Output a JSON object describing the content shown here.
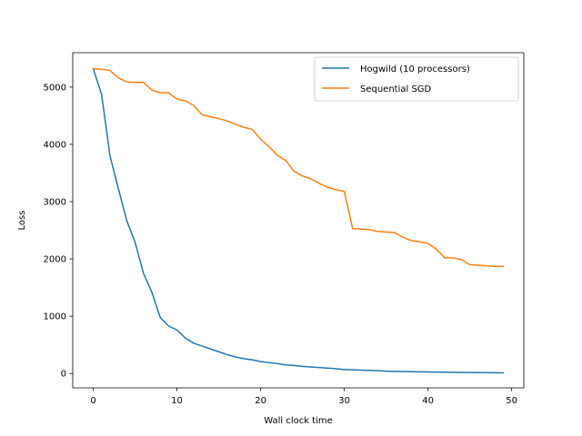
{
  "chart_data": {
    "type": "line",
    "title": "",
    "xlabel": "Wall clock time",
    "ylabel": "Loss",
    "xlim": [
      -2.45,
      51.45
    ],
    "ylim": [
      -250,
      5600
    ],
    "xticks": [
      0,
      10,
      20,
      30,
      40,
      50
    ],
    "yticks": [
      0,
      1000,
      2000,
      3000,
      4000,
      5000
    ],
    "grid": false,
    "legend_position": "top-right",
    "x": [
      0,
      1,
      2,
      3,
      4,
      5,
      6,
      7,
      8,
      9,
      10,
      11,
      12,
      13,
      14,
      15,
      16,
      17,
      18,
      19,
      20,
      21,
      22,
      23,
      24,
      25,
      26,
      27,
      28,
      29,
      30,
      31,
      32,
      33,
      34,
      35,
      36,
      37,
      38,
      39,
      40,
      41,
      42,
      43,
      44,
      45,
      46,
      47,
      48,
      49
    ],
    "series": [
      {
        "name": "Hogwild (10 processors)",
        "color": "#1f77b4",
        "values": [
          5320,
          4870,
          3800,
          3230,
          2670,
          2290,
          1750,
          1420,
          980,
          830,
          760,
          620,
          530,
          480,
          430,
          380,
          330,
          290,
          260,
          240,
          210,
          190,
          175,
          150,
          140,
          125,
          115,
          105,
          95,
          85,
          70,
          65,
          60,
          55,
          50,
          42,
          38,
          35,
          33,
          30,
          28,
          26,
          24,
          22,
          20,
          18,
          16,
          15,
          14,
          12
        ]
      },
      {
        "name": "Sequential SGD",
        "color": "#ff7f0e",
        "values": [
          5320,
          5310,
          5290,
          5160,
          5090,
          5080,
          5080,
          4950,
          4900,
          4900,
          4790,
          4760,
          4680,
          4520,
          4480,
          4450,
          4410,
          4350,
          4300,
          4260,
          4090,
          3960,
          3810,
          3720,
          3530,
          3450,
          3400,
          3320,
          3250,
          3210,
          3180,
          2530,
          2520,
          2510,
          2480,
          2470,
          2460,
          2380,
          2320,
          2300,
          2270,
          2170,
          2020,
          2020,
          1990,
          1900,
          1890,
          1880,
          1870,
          1870
        ]
      }
    ]
  }
}
